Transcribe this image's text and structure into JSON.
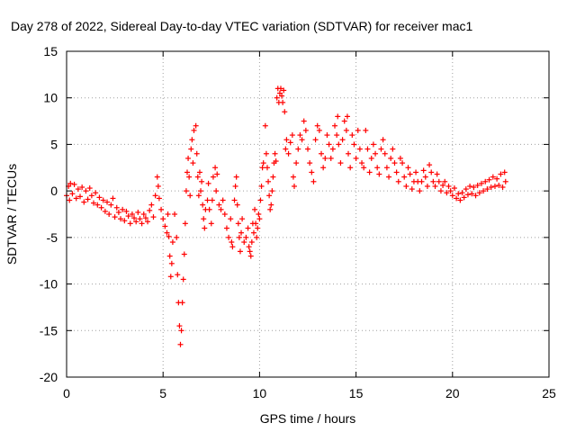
{
  "chart_data": {
    "type": "scatter",
    "title": "Day 278 of 2022, Sidereal Day-to-day VTEC variation (SDTVAR) for receiver mac1",
    "xlabel": "GPS time / hours",
    "ylabel": "SDTVAR / TECUs",
    "xlim": [
      0,
      25
    ],
    "ylim": [
      -20,
      15
    ],
    "xticks": [
      0,
      5,
      10,
      15,
      20,
      25
    ],
    "yticks": [
      15,
      10,
      5,
      0,
      -5,
      -10,
      -15,
      -20
    ],
    "grid": true,
    "marker": "+",
    "color": "#ff0000",
    "series": [
      {
        "name": "SDTVAR",
        "points": [
          [
            0.0,
            -0.5
          ],
          [
            0.1,
            0.5
          ],
          [
            0.15,
            -1.0
          ],
          [
            0.2,
            0.8
          ],
          [
            0.3,
            -0.3
          ],
          [
            0.4,
            0.7
          ],
          [
            0.5,
            -0.8
          ],
          [
            0.6,
            0.2
          ],
          [
            0.7,
            -0.6
          ],
          [
            0.8,
            0.4
          ],
          [
            0.9,
            -1.2
          ],
          [
            1.0,
            0.0
          ],
          [
            1.1,
            -0.9
          ],
          [
            1.2,
            0.3
          ],
          [
            1.3,
            -0.5
          ],
          [
            1.4,
            -1.3
          ],
          [
            1.5,
            -0.2
          ],
          [
            1.6,
            -1.5
          ],
          [
            1.7,
            -0.7
          ],
          [
            1.8,
            -1.8
          ],
          [
            1.9,
            -1.0
          ],
          [
            2.0,
            -2.2
          ],
          [
            2.1,
            -1.2
          ],
          [
            2.2,
            -2.5
          ],
          [
            2.3,
            -1.5
          ],
          [
            2.4,
            -0.8
          ],
          [
            2.5,
            -2.8
          ],
          [
            2.6,
            -1.8
          ],
          [
            2.7,
            -2.3
          ],
          [
            2.8,
            -3.0
          ],
          [
            2.9,
            -2.0
          ],
          [
            3.0,
            -3.2
          ],
          [
            3.1,
            -2.2
          ],
          [
            3.2,
            -2.7
          ],
          [
            3.3,
            -3.5
          ],
          [
            3.4,
            -2.5
          ],
          [
            3.5,
            -2.9
          ],
          [
            3.6,
            -3.3
          ],
          [
            3.7,
            -2.3
          ],
          [
            3.8,
            -3.0
          ],
          [
            3.9,
            -3.5
          ],
          [
            4.0,
            -2.5
          ],
          [
            4.1,
            -2.9
          ],
          [
            4.2,
            -3.3
          ],
          [
            4.3,
            -2.1
          ],
          [
            4.4,
            -1.5
          ],
          [
            4.5,
            -2.8
          ],
          [
            4.6,
            -0.5
          ],
          [
            4.7,
            1.5
          ],
          [
            4.75,
            0.5
          ],
          [
            4.8,
            -0.8
          ],
          [
            4.9,
            -2.0
          ],
          [
            5.0,
            -3.0
          ],
          [
            5.1,
            -3.8
          ],
          [
            5.2,
            -4.5
          ],
          [
            5.25,
            -2.5
          ],
          [
            5.3,
            -4.9
          ],
          [
            5.35,
            -7.0
          ],
          [
            5.4,
            -9.2
          ],
          [
            5.45,
            -7.8
          ],
          [
            5.5,
            -5.5
          ],
          [
            5.6,
            -2.5
          ],
          [
            5.7,
            -5.0
          ],
          [
            5.75,
            -9.0
          ],
          [
            5.8,
            -12.0
          ],
          [
            5.85,
            -14.5
          ],
          [
            5.9,
            -16.5
          ],
          [
            5.95,
            -15.0
          ],
          [
            6.0,
            -12.0
          ],
          [
            6.05,
            -9.5
          ],
          [
            6.1,
            -6.8
          ],
          [
            6.15,
            -3.5
          ],
          [
            6.2,
            0.0
          ],
          [
            6.25,
            2.0
          ],
          [
            6.3,
            3.5
          ],
          [
            6.35,
            1.5
          ],
          [
            6.4,
            -0.5
          ],
          [
            6.45,
            4.5
          ],
          [
            6.5,
            5.5
          ],
          [
            6.55,
            3.0
          ],
          [
            6.6,
            6.5
          ],
          [
            6.7,
            7.0
          ],
          [
            6.75,
            4.0
          ],
          [
            6.8,
            1.5
          ],
          [
            6.85,
            -0.5
          ],
          [
            6.9,
            2.0
          ],
          [
            6.95,
            0.0
          ],
          [
            7.0,
            1.0
          ],
          [
            7.05,
            -1.5
          ],
          [
            7.1,
            -3.0
          ],
          [
            7.15,
            -4.0
          ],
          [
            7.2,
            -2.0
          ],
          [
            7.3,
            -1.0
          ],
          [
            7.35,
            0.8
          ],
          [
            7.4,
            -2.0
          ],
          [
            7.5,
            -3.5
          ],
          [
            7.55,
            -1.0
          ],
          [
            7.6,
            1.5
          ],
          [
            7.7,
            2.5
          ],
          [
            7.75,
            0.0
          ],
          [
            7.8,
            1.8
          ],
          [
            7.9,
            -1.5
          ],
          [
            8.0,
            -2.0
          ],
          [
            8.1,
            -1.0
          ],
          [
            8.2,
            -2.5
          ],
          [
            8.3,
            -4.0
          ],
          [
            8.4,
            -5.0
          ],
          [
            8.5,
            -3.0
          ],
          [
            8.55,
            -5.5
          ],
          [
            8.6,
            -6.0
          ],
          [
            8.7,
            -1.0
          ],
          [
            8.75,
            0.5
          ],
          [
            8.8,
            1.5
          ],
          [
            8.85,
            -1.5
          ],
          [
            8.9,
            -3.5
          ],
          [
            8.95,
            -5.0
          ],
          [
            9.0,
            -6.5
          ],
          [
            9.05,
            -4.5
          ],
          [
            9.1,
            -3.0
          ],
          [
            9.2,
            -5.5
          ],
          [
            9.3,
            -5.0
          ],
          [
            9.4,
            -4.0
          ],
          [
            9.45,
            -6.0
          ],
          [
            9.5,
            -6.5
          ],
          [
            9.55,
            -7.0
          ],
          [
            9.6,
            -5.5
          ],
          [
            9.65,
            -3.5
          ],
          [
            9.7,
            -4.5
          ],
          [
            9.75,
            -2.0
          ],
          [
            9.8,
            -3.5
          ],
          [
            9.85,
            -5.0
          ],
          [
            9.9,
            -4.0
          ],
          [
            9.95,
            -2.5
          ],
          [
            10.0,
            -3.0
          ],
          [
            10.05,
            -1.0
          ],
          [
            10.1,
            0.5
          ],
          [
            10.15,
            2.5
          ],
          [
            10.2,
            3.0
          ],
          [
            10.3,
            7.0
          ],
          [
            10.35,
            4.0
          ],
          [
            10.4,
            2.5
          ],
          [
            10.45,
            1.0
          ],
          [
            10.5,
            -0.5
          ],
          [
            10.55,
            -2.0
          ],
          [
            10.6,
            -1.5
          ],
          [
            10.65,
            0.0
          ],
          [
            10.7,
            1.5
          ],
          [
            10.75,
            3.0
          ],
          [
            10.8,
            4.0
          ],
          [
            10.85,
            3.2
          ],
          [
            10.9,
            10.0
          ],
          [
            10.95,
            11.0
          ],
          [
            11.0,
            9.5
          ],
          [
            11.05,
            10.5
          ],
          [
            11.1,
            11.0
          ],
          [
            11.15,
            10.2
          ],
          [
            11.2,
            9.5
          ],
          [
            11.25,
            10.8
          ],
          [
            11.3,
            8.5
          ],
          [
            11.35,
            4.5
          ],
          [
            11.4,
            5.5
          ],
          [
            11.5,
            4.0
          ],
          [
            11.6,
            5.2
          ],
          [
            11.7,
            6.0
          ],
          [
            11.75,
            1.5
          ],
          [
            11.8,
            0.5
          ],
          [
            11.9,
            3.0
          ],
          [
            12.0,
            4.5
          ],
          [
            12.1,
            6.0
          ],
          [
            12.2,
            5.5
          ],
          [
            12.3,
            7.5
          ],
          [
            12.4,
            6.5
          ],
          [
            12.5,
            4.5
          ],
          [
            12.6,
            3.0
          ],
          [
            12.7,
            2.0
          ],
          [
            12.8,
            1.0
          ],
          [
            12.9,
            5.5
          ],
          [
            13.0,
            7.0
          ],
          [
            13.1,
            6.5
          ],
          [
            13.2,
            4.0
          ],
          [
            13.3,
            2.5
          ],
          [
            13.4,
            3.5
          ],
          [
            13.5,
            6.0
          ],
          [
            13.6,
            5.0
          ],
          [
            13.7,
            3.5
          ],
          [
            13.8,
            4.5
          ],
          [
            13.9,
            7.0
          ],
          [
            14.0,
            6.0
          ],
          [
            14.05,
            8.0
          ],
          [
            14.1,
            5.0
          ],
          [
            14.2,
            3.0
          ],
          [
            14.3,
            5.5
          ],
          [
            14.4,
            7.5
          ],
          [
            14.5,
            6.5
          ],
          [
            14.55,
            8.0
          ],
          [
            14.6,
            4.0
          ],
          [
            14.7,
            2.5
          ],
          [
            14.8,
            6.0
          ],
          [
            14.9,
            5.0
          ],
          [
            15.0,
            3.5
          ],
          [
            15.1,
            6.5
          ],
          [
            15.2,
            4.5
          ],
          [
            15.3,
            3.0
          ],
          [
            15.4,
            2.5
          ],
          [
            15.5,
            6.5
          ],
          [
            15.6,
            4.5
          ],
          [
            15.7,
            2.0
          ],
          [
            15.8,
            3.5
          ],
          [
            15.9,
            5.0
          ],
          [
            16.0,
            4.0
          ],
          [
            16.1,
            2.5
          ],
          [
            16.2,
            1.8
          ],
          [
            16.3,
            4.5
          ],
          [
            16.4,
            5.5
          ],
          [
            16.5,
            4.0
          ],
          [
            16.6,
            2.5
          ],
          [
            16.7,
            1.5
          ],
          [
            16.8,
            3.5
          ],
          [
            16.9,
            4.5
          ],
          [
            17.0,
            3.0
          ],
          [
            17.1,
            2.0
          ],
          [
            17.2,
            1.0
          ],
          [
            17.3,
            3.5
          ],
          [
            17.4,
            3.0
          ],
          [
            17.5,
            1.5
          ],
          [
            17.6,
            0.5
          ],
          [
            17.7,
            2.5
          ],
          [
            17.8,
            1.8
          ],
          [
            17.9,
            0.2
          ],
          [
            18.0,
            1.0
          ],
          [
            18.1,
            2.0
          ],
          [
            18.2,
            1.0
          ],
          [
            18.3,
            0.0
          ],
          [
            18.4,
            1.0
          ],
          [
            18.5,
            2.2
          ],
          [
            18.6,
            1.5
          ],
          [
            18.7,
            0.5
          ],
          [
            18.8,
            2.8
          ],
          [
            18.9,
            2.0
          ],
          [
            19.0,
            1.0
          ],
          [
            19.1,
            0.5
          ],
          [
            19.2,
            1.8
          ],
          [
            19.3,
            1.0
          ],
          [
            19.4,
            0.0
          ],
          [
            19.5,
            0.6
          ],
          [
            19.6,
            1.0
          ],
          [
            19.7,
            -0.2
          ],
          [
            19.8,
            0.5
          ],
          [
            19.9,
            0.0
          ],
          [
            20.0,
            -0.5
          ],
          [
            20.1,
            0.3
          ],
          [
            20.2,
            -0.8
          ],
          [
            20.3,
            -0.3
          ],
          [
            20.4,
            -1.0
          ],
          [
            20.5,
            -0.2
          ],
          [
            20.6,
            -0.7
          ],
          [
            20.7,
            0.2
          ],
          [
            20.8,
            -0.4
          ],
          [
            20.9,
            0.5
          ],
          [
            21.0,
            -0.3
          ],
          [
            21.1,
            0.4
          ],
          [
            21.2,
            -0.5
          ],
          [
            21.3,
            0.6
          ],
          [
            21.4,
            -0.2
          ],
          [
            21.5,
            0.8
          ],
          [
            21.6,
            0.0
          ],
          [
            21.7,
            1.0
          ],
          [
            21.8,
            0.2
          ],
          [
            21.9,
            1.2
          ],
          [
            22.0,
            0.4
          ],
          [
            22.1,
            1.5
          ],
          [
            22.2,
            0.5
          ],
          [
            22.3,
            1.3
          ],
          [
            22.4,
            0.6
          ],
          [
            22.5,
            1.8
          ],
          [
            22.6,
            0.4
          ],
          [
            22.7,
            2.0
          ],
          [
            22.75,
            1.0
          ]
        ]
      }
    ]
  }
}
